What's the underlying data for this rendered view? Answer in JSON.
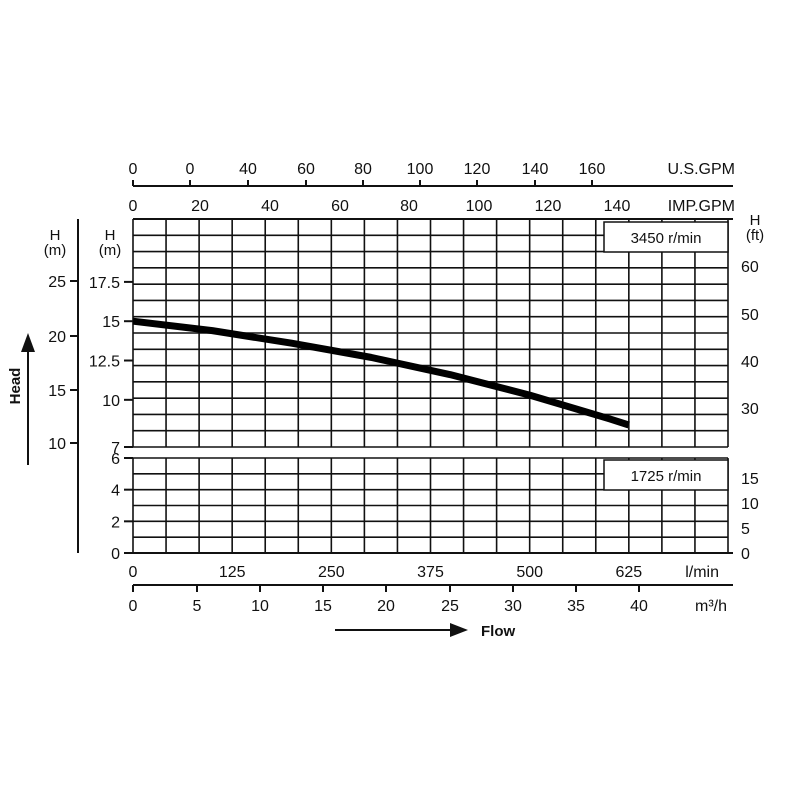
{
  "chart_data": {
    "type": "line",
    "title": "",
    "ylabel": "Head",
    "xlabel": "Flow",
    "upper_panel": {
      "speed_label": "3450 r/min",
      "y_unit_label_left_outer": "H\n(m)",
      "y_unit_label_left_inner": "H\n(m)",
      "y_unit_label_right": "H\n(ft)",
      "inner_ticks_m": [
        "7",
        "10",
        "12.5",
        "15",
        "17.5"
      ],
      "outer_ticks_m": [
        "10",
        "15",
        "20",
        "25"
      ],
      "right_ticks_ft": [
        "30",
        "40",
        "50",
        "60"
      ],
      "ylim_m": [
        7,
        21.5
      ]
    },
    "lower_panel": {
      "speed_label": "1725 r/min",
      "left_ticks_m": [
        "0",
        "2",
        "4",
        "6"
      ],
      "right_ticks_ft": [
        "0",
        "5",
        "10",
        "15"
      ],
      "ylim_m": [
        0,
        6
      ]
    },
    "x_axes": {
      "lpm": {
        "unit": "l/min",
        "ticks": [
          "0",
          "125",
          "250",
          "375",
          "500",
          "625"
        ],
        "xlim": [
          0,
          750
        ]
      },
      "m3h": {
        "unit": "m³/h",
        "ticks": [
          "0",
          "5",
          "10",
          "15",
          "20",
          "25",
          "30",
          "35",
          "40"
        ],
        "xlim": [
          0,
          45
        ]
      },
      "us_gpm": {
        "unit": "U.S.GPM",
        "ticks": [
          "0",
          "0",
          "40",
          "60",
          "80",
          "100",
          "120",
          "140",
          "160"
        ]
      },
      "imp_gpm": {
        "unit": "IMP.GPM",
        "ticks": [
          "0",
          "20",
          "40",
          "60",
          "80",
          "100",
          "120",
          "140"
        ]
      }
    },
    "series": [
      {
        "speed": "3450 r/min",
        "x_lpm": [
          0,
          100,
          200,
          300,
          400,
          500,
          600,
          625
        ],
        "y_m": [
          15.0,
          14.4,
          13.6,
          12.7,
          11.6,
          10.3,
          8.8,
          8.4
        ]
      }
    ],
    "grid": true,
    "legend": "none"
  },
  "labels": {
    "head": "Head",
    "flow": "Flow"
  },
  "colors": {
    "ink": "#111111",
    "background": "#ffffff"
  }
}
